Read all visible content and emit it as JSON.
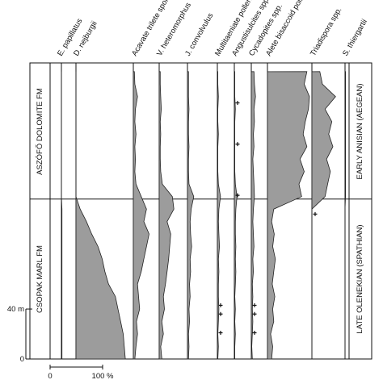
{
  "chart_data": {
    "type": "pollen",
    "color": "#9c9c9c",
    "depths": [
      0,
      10,
      20,
      30,
      40,
      50,
      60,
      70,
      80,
      90,
      100,
      110,
      120,
      130,
      140,
      150,
      160,
      170,
      180,
      190,
      200,
      210,
      220,
      230
    ],
    "ylim": [
      0,
      237
    ],
    "yticks": [
      0,
      {
        "value": 40,
        "label": "40 m"
      }
    ],
    "xlim": [
      0,
      100
    ],
    "xticks": [
      0,
      {
        "value": 100,
        "label": "100 %"
      }
    ],
    "boundary": 128,
    "formations": {
      "upper": "ASZÓFŐ DOLOMITE FM",
      "lower": "CSOPAK MARL FM"
    },
    "stages": {
      "upper": "EARLY ANISIAN (AEGEAN)",
      "lower": "LATE OLENEKIAN (SPATHIAN)"
    },
    "series": [
      {
        "name": "E. papillatus",
        "values": [
          1,
          1,
          1,
          1,
          1,
          1,
          1,
          1,
          1,
          1,
          1,
          1,
          1,
          0,
          0,
          0,
          0,
          0,
          0,
          0,
          0,
          0,
          0,
          0
        ]
      },
      {
        "name": "D. nejburgii",
        "values": [
          94,
          92,
          90,
          85,
          80,
          75,
          62,
          55,
          50,
          42,
          30,
          20,
          8,
          0,
          0,
          0,
          0,
          0,
          0,
          0,
          0,
          0,
          0,
          0
        ]
      },
      {
        "name": "Acavate trilete spores",
        "values": [
          3,
          5,
          8,
          6,
          12,
          10,
          8,
          15,
          20,
          25,
          30,
          20,
          25,
          15,
          5,
          3,
          4,
          3,
          5,
          3,
          4,
          8,
          3,
          2
        ]
      },
      {
        "name": "V. heteromorphus",
        "values": [
          5,
          3,
          8,
          5,
          10,
          8,
          12,
          15,
          18,
          20,
          22,
          15,
          28,
          25,
          6,
          3,
          2,
          2,
          3,
          2,
          4,
          3,
          2,
          2
        ]
      },
      {
        "name": "J. convolvulus",
        "values": [
          2,
          3,
          2,
          4,
          3,
          5,
          4,
          6,
          5,
          8,
          6,
          5,
          7,
          12,
          3,
          2,
          2,
          3,
          2,
          2,
          3,
          2,
          2,
          2
        ]
      },
      {
        "name": "Multitaeniate pollen",
        "values": [
          1,
          2,
          1,
          2,
          3,
          2,
          2,
          3,
          2,
          4,
          3,
          2,
          3,
          6,
          2,
          1,
          1,
          1,
          2,
          1,
          1,
          2,
          1,
          1
        ]
      },
      {
        "name": "Angustisulcites spp.",
        "values": [
          1,
          1,
          2,
          1,
          2,
          1,
          2,
          3,
          2,
          3,
          2,
          2,
          3,
          5,
          2,
          1,
          1,
          1,
          1,
          1,
          2,
          1,
          1,
          1
        ]
      },
      {
        "name": "Cycadopites spp.",
        "values": [
          2,
          1,
          2,
          3,
          2,
          3,
          2,
          4,
          3,
          5,
          4,
          3,
          4,
          6,
          5,
          4,
          3,
          5,
          4,
          6,
          5,
          8,
          6,
          5
        ]
      },
      {
        "name": "Alete bisaccoid pollen",
        "values": [
          8,
          10,
          6,
          12,
          10,
          14,
          9,
          12,
          15,
          10,
          13,
          8,
          12,
          65,
          60,
          70,
          62,
          75,
          68,
          72,
          78,
          80,
          70,
          75
        ]
      },
      {
        "name": "Triadispora spp.",
        "values": [
          0,
          0,
          0,
          0,
          0,
          0,
          0,
          0,
          0,
          0,
          0,
          0,
          0,
          25,
          30,
          35,
          28,
          40,
          32,
          38,
          25,
          45,
          20,
          15
        ]
      },
      {
        "name": "S. thiergartii",
        "values": [
          0,
          0,
          0,
          0,
          0,
          0,
          0,
          0,
          0,
          0,
          0,
          0,
          0,
          1,
          1,
          1,
          1,
          1,
          1,
          1,
          1,
          1,
          1,
          1
        ]
      }
    ],
    "presence": [
      {
        "series": 5,
        "depths": [
          43,
          36,
          21
        ]
      },
      {
        "series": 6,
        "depths": [
          205,
          172,
          131
        ]
      },
      {
        "series": 7,
        "depths": [
          43,
          36,
          21
        ]
      },
      {
        "series": 9,
        "depths": [
          116
        ]
      }
    ]
  }
}
